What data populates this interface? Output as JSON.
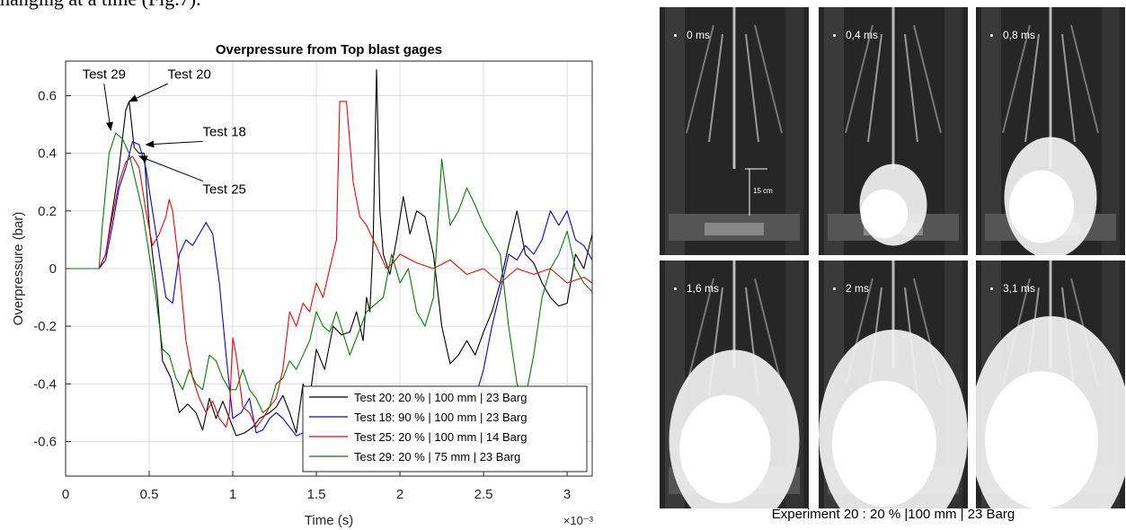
{
  "header_text": "hanging at a time (Fig.7).",
  "chart_data": {
    "type": "line",
    "title": "Overpressure from Top blast gages",
    "xlabel": "Time (s)",
    "ylabel": "Overpressure (bar)",
    "x_exponent": "×10⁻³",
    "xlim": [
      0,
      3.15
    ],
    "ylim": [
      -0.72,
      0.72
    ],
    "xticks": [
      0,
      0.5,
      1,
      1.5,
      2,
      2.5,
      3
    ],
    "xtick_labels": [
      "0",
      "0.5",
      "1",
      "1.5",
      "2",
      "2.5",
      "3"
    ],
    "yticks": [
      -0.6,
      -0.4,
      -0.2,
      0,
      0.2,
      0.4,
      0.6
    ],
    "ytick_labels": [
      "-0.6",
      "-0.4",
      "-0.2",
      "0",
      "0.2",
      "0.4",
      "0.6"
    ],
    "grid": true,
    "legend_position": "bottom-right",
    "series": [
      {
        "name": "Test 20: 20 % | 100 mm | 23 Barg",
        "color": "#000000",
        "points": [
          [
            0,
            0
          ],
          [
            0.2,
            0
          ],
          [
            0.24,
            0.05
          ],
          [
            0.28,
            0.2
          ],
          [
            0.32,
            0.35
          ],
          [
            0.36,
            0.55
          ],
          [
            0.38,
            0.58
          ],
          [
            0.41,
            0.42
          ],
          [
            0.44,
            0.4
          ],
          [
            0.47,
            0.4
          ],
          [
            0.5,
            0.15
          ],
          [
            0.55,
            -0.1
          ],
          [
            0.58,
            -0.32
          ],
          [
            0.63,
            -0.38
          ],
          [
            0.68,
            -0.5
          ],
          [
            0.73,
            -0.47
          ],
          [
            0.78,
            -0.5
          ],
          [
            0.82,
            -0.56
          ],
          [
            0.86,
            -0.45
          ],
          [
            0.9,
            -0.52
          ],
          [
            0.94,
            -0.46
          ],
          [
            0.98,
            -0.52
          ],
          [
            1.02,
            -0.58
          ],
          [
            1.07,
            -0.57
          ],
          [
            1.12,
            -0.55
          ],
          [
            1.16,
            -0.52
          ],
          [
            1.22,
            -0.5
          ],
          [
            1.26,
            -0.48
          ],
          [
            1.3,
            -0.44
          ],
          [
            1.34,
            -0.5
          ],
          [
            1.38,
            -0.57
          ],
          [
            1.42,
            -0.4
          ],
          [
            1.46,
            -0.45
          ],
          [
            1.5,
            -0.28
          ],
          [
            1.55,
            -0.35
          ],
          [
            1.6,
            -0.2
          ],
          [
            1.65,
            -0.23
          ],
          [
            1.7,
            -0.22
          ],
          [
            1.74,
            -0.15
          ],
          [
            1.78,
            -0.25
          ],
          [
            1.8,
            -0.1
          ],
          [
            1.82,
            -0.15
          ],
          [
            1.84,
            0.1
          ],
          [
            1.86,
            0.69
          ],
          [
            1.88,
            0.2
          ],
          [
            1.9,
            0.05
          ],
          [
            1.94,
            -0.02
          ],
          [
            1.98,
            0.1
          ],
          [
            2.02,
            0.25
          ],
          [
            2.06,
            0.12
          ],
          [
            2.1,
            0.2
          ],
          [
            2.15,
            0.18
          ],
          [
            2.2,
            0.05
          ],
          [
            2.25,
            -0.2
          ],
          [
            2.3,
            -0.33
          ],
          [
            2.35,
            -0.3
          ],
          [
            2.4,
            -0.25
          ],
          [
            2.45,
            -0.3
          ],
          [
            2.5,
            -0.22
          ],
          [
            2.55,
            -0.15
          ],
          [
            2.6,
            -0.05
          ],
          [
            2.65,
            0.08
          ],
          [
            2.7,
            0.2
          ],
          [
            2.75,
            0.05
          ],
          [
            2.8,
            0.02
          ],
          [
            2.85,
            -0.05
          ],
          [
            2.9,
            -0.1
          ],
          [
            2.95,
            -0.13
          ],
          [
            3.0,
            -0.12
          ],
          [
            3.05,
            0.05
          ],
          [
            3.1,
            0.0
          ],
          [
            3.15,
            0.12
          ]
        ]
      },
      {
        "name": "Test 18: 90 % | 100 mm | 23 Barg",
        "color": "#0000ff",
        "points": [
          [
            0,
            0
          ],
          [
            0.2,
            0
          ],
          [
            0.24,
            0.03
          ],
          [
            0.28,
            0.15
          ],
          [
            0.32,
            0.28
          ],
          [
            0.36,
            0.35
          ],
          [
            0.4,
            0.44
          ],
          [
            0.44,
            0.43
          ],
          [
            0.48,
            0.35
          ],
          [
            0.52,
            0.2
          ],
          [
            0.56,
            0.05
          ],
          [
            0.6,
            -0.1
          ],
          [
            0.64,
            -0.12
          ],
          [
            0.68,
            0.05
          ],
          [
            0.72,
            0.1
          ],
          [
            0.76,
            0.08
          ],
          [
            0.8,
            0.12
          ],
          [
            0.84,
            0.16
          ],
          [
            0.88,
            0.12
          ],
          [
            0.92,
            -0.05
          ],
          [
            0.96,
            -0.3
          ],
          [
            1.0,
            -0.52
          ],
          [
            1.05,
            -0.5
          ],
          [
            1.1,
            -0.45
          ],
          [
            1.14,
            -0.57
          ],
          [
            1.18,
            -0.56
          ],
          [
            1.22,
            -0.52
          ],
          [
            1.26,
            -0.5
          ],
          [
            1.3,
            -0.52
          ],
          [
            1.34,
            -0.55
          ],
          [
            1.38,
            -0.58
          ],
          [
            1.42,
            -0.57
          ],
          [
            1.5,
            -0.55
          ],
          [
            1.7,
            -0.56
          ],
          [
            1.9,
            -0.58
          ],
          [
            2.1,
            -0.6
          ],
          [
            2.3,
            -0.55
          ],
          [
            2.4,
            -0.5
          ],
          [
            2.45,
            -0.45
          ],
          [
            2.5,
            -0.35
          ],
          [
            2.55,
            -0.2
          ],
          [
            2.6,
            -0.08
          ],
          [
            2.65,
            0.05
          ],
          [
            2.7,
            0.03
          ],
          [
            2.75,
            0.08
          ],
          [
            2.8,
            0.05
          ],
          [
            2.85,
            0.1
          ],
          [
            2.9,
            0.2
          ],
          [
            2.95,
            0.15
          ],
          [
            3.0,
            0.2
          ],
          [
            3.05,
            0.1
          ],
          [
            3.1,
            0.08
          ],
          [
            3.15,
            0.03
          ]
        ]
      },
      {
        "name": "Test 25: 20 % | 100 mm | 14 Barg",
        "color": "#ff0000",
        "points": [
          [
            0,
            0
          ],
          [
            0.2,
            0
          ],
          [
            0.24,
            0.05
          ],
          [
            0.28,
            0.18
          ],
          [
            0.32,
            0.3
          ],
          [
            0.36,
            0.37
          ],
          [
            0.4,
            0.39
          ],
          [
            0.44,
            0.35
          ],
          [
            0.48,
            0.2
          ],
          [
            0.52,
            0.08
          ],
          [
            0.56,
            0.12
          ],
          [
            0.6,
            0.18
          ],
          [
            0.62,
            0.24
          ],
          [
            0.64,
            0.2
          ],
          [
            0.68,
            0.0
          ],
          [
            0.72,
            -0.25
          ],
          [
            0.76,
            -0.38
          ],
          [
            0.8,
            -0.45
          ],
          [
            0.84,
            -0.5
          ],
          [
            0.88,
            -0.46
          ],
          [
            0.92,
            -0.52
          ],
          [
            0.96,
            -0.55
          ],
          [
            0.98,
            -0.5
          ],
          [
            1.0,
            -0.24
          ],
          [
            1.02,
            -0.3
          ],
          [
            1.06,
            -0.48
          ],
          [
            1.1,
            -0.5
          ],
          [
            1.14,
            -0.55
          ],
          [
            1.18,
            -0.52
          ],
          [
            1.22,
            -0.48
          ],
          [
            1.26,
            -0.45
          ],
          [
            1.3,
            -0.35
          ],
          [
            1.34,
            -0.15
          ],
          [
            1.38,
            -0.2
          ],
          [
            1.42,
            -0.12
          ],
          [
            1.46,
            -0.15
          ],
          [
            1.5,
            -0.05
          ],
          [
            1.54,
            -0.1
          ],
          [
            1.58,
            0.0
          ],
          [
            1.62,
            0.1
          ],
          [
            1.64,
            0.58
          ],
          [
            1.68,
            0.58
          ],
          [
            1.72,
            0.3
          ],
          [
            1.76,
            0.18
          ],
          [
            1.8,
            0.15
          ],
          [
            1.84,
            0.1
          ],
          [
            1.88,
            0.05
          ],
          [
            1.92,
            0.0
          ],
          [
            1.96,
            0.02
          ],
          [
            2.0,
            0.05
          ],
          [
            2.1,
            0.02
          ],
          [
            2.2,
            0.0
          ],
          [
            2.3,
            0.03
          ],
          [
            2.4,
            -0.02
          ],
          [
            2.5,
            0.0
          ],
          [
            2.6,
            -0.05
          ],
          [
            2.7,
            0.0
          ],
          [
            2.8,
            -0.02
          ],
          [
            2.9,
            0.0
          ],
          [
            3.0,
            -0.05
          ],
          [
            3.1,
            -0.03
          ],
          [
            3.15,
            -0.05
          ]
        ]
      },
      {
        "name": "Test 29: 20 % | 75 mm | 23 Barg",
        "color": "#008000",
        "points": [
          [
            0,
            0
          ],
          [
            0.2,
            0
          ],
          [
            0.22,
            0.15
          ],
          [
            0.26,
            0.4
          ],
          [
            0.3,
            0.47
          ],
          [
            0.34,
            0.45
          ],
          [
            0.38,
            0.4
          ],
          [
            0.42,
            0.3
          ],
          [
            0.46,
            0.2
          ],
          [
            0.5,
            0.05
          ],
          [
            0.54,
            -0.1
          ],
          [
            0.58,
            -0.28
          ],
          [
            0.62,
            -0.3
          ],
          [
            0.66,
            -0.38
          ],
          [
            0.7,
            -0.42
          ],
          [
            0.74,
            -0.35
          ],
          [
            0.78,
            -0.4
          ],
          [
            0.82,
            -0.42
          ],
          [
            0.86,
            -0.3
          ],
          [
            0.9,
            -0.32
          ],
          [
            0.94,
            -0.38
          ],
          [
            0.98,
            -0.42
          ],
          [
            1.02,
            -0.42
          ],
          [
            1.06,
            -0.35
          ],
          [
            1.1,
            -0.42
          ],
          [
            1.14,
            -0.45
          ],
          [
            1.18,
            -0.5
          ],
          [
            1.22,
            -0.48
          ],
          [
            1.26,
            -0.4
          ],
          [
            1.3,
            -0.38
          ],
          [
            1.34,
            -0.32
          ],
          [
            1.38,
            -0.35
          ],
          [
            1.42,
            -0.3
          ],
          [
            1.46,
            -0.25
          ],
          [
            1.5,
            -0.15
          ],
          [
            1.54,
            -0.2
          ],
          [
            1.58,
            -0.22
          ],
          [
            1.62,
            -0.15
          ],
          [
            1.7,
            -0.3
          ],
          [
            1.8,
            -0.15
          ],
          [
            1.9,
            -0.1
          ],
          [
            1.95,
            0.05
          ],
          [
            2.0,
            -0.05
          ],
          [
            2.05,
            0.0
          ],
          [
            2.1,
            -0.15
          ],
          [
            2.15,
            -0.2
          ],
          [
            2.2,
            -0.1
          ],
          [
            2.25,
            0.38
          ],
          [
            2.3,
            0.15
          ],
          [
            2.35,
            0.2
          ],
          [
            2.4,
            0.28
          ],
          [
            2.45,
            0.22
          ],
          [
            2.5,
            0.15
          ],
          [
            2.55,
            0.1
          ],
          [
            2.6,
            0.05
          ],
          [
            2.65,
            -0.2
          ],
          [
            2.7,
            -0.4
          ],
          [
            2.75,
            -0.45
          ],
          [
            2.8,
            -0.3
          ],
          [
            2.85,
            -0.1
          ],
          [
            2.9,
            0.0
          ],
          [
            2.95,
            0.05
          ],
          [
            3.0,
            0.13
          ],
          [
            3.05,
            0.0
          ],
          [
            3.1,
            -0.05
          ],
          [
            3.15,
            -0.08
          ]
        ]
      }
    ],
    "annotations": [
      {
        "text": "Test 29",
        "label_at": [
          0.23,
          0.66
        ],
        "arrow_to": [
          0.27,
          0.48
        ]
      },
      {
        "text": "Test 20",
        "label_at": [
          0.74,
          0.66
        ],
        "arrow_to": [
          0.38,
          0.58
        ]
      },
      {
        "text": "Test 18",
        "label_at": [
          0.95,
          0.46
        ],
        "arrow_to": [
          0.48,
          0.43
        ]
      },
      {
        "text": "Test 25",
        "label_at": [
          0.95,
          0.26
        ],
        "arrow_to": [
          0.44,
          0.39
        ]
      }
    ]
  },
  "photos": [
    {
      "label": "0 ms"
    },
    {
      "label": "0,4 ms"
    },
    {
      "label": "0,8 ms"
    },
    {
      "label": "1,6 ms"
    },
    {
      "label": "2 ms"
    },
    {
      "label": "3,1 ms"
    }
  ],
  "photo_scale_label": "15 cm",
  "figure_caption": "Experiment 20 : 20 % |100 mm | 23 Barg"
}
